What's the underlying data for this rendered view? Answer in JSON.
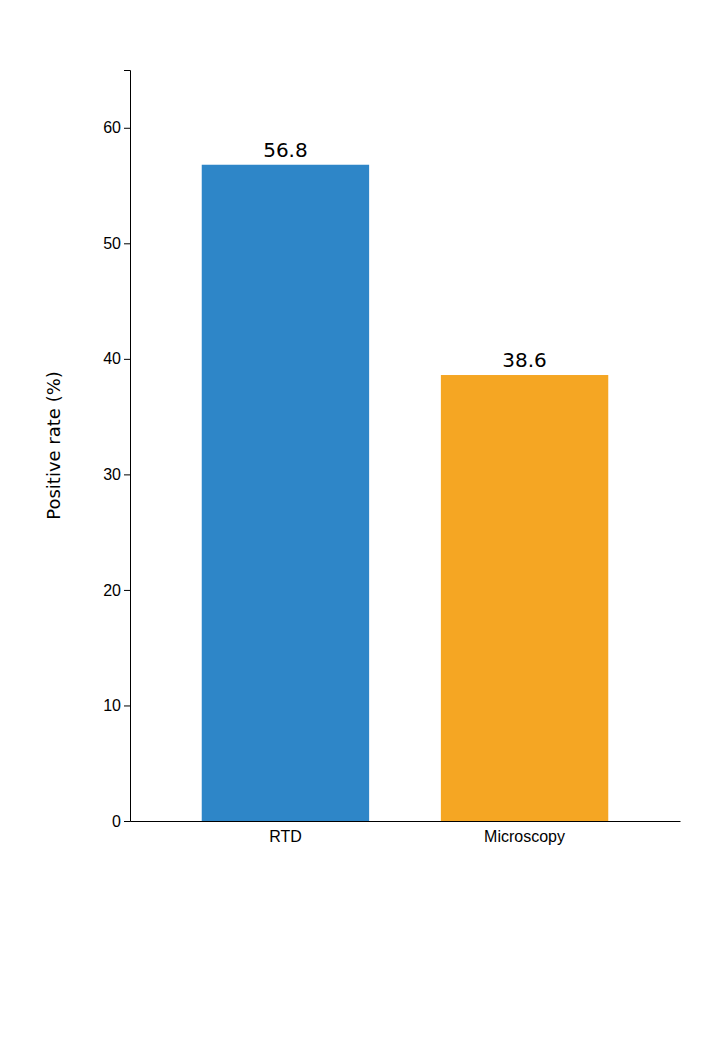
{
  "chart_data": {
    "type": "bar",
    "categories": [
      "RTD",
      "Microscopy"
    ],
    "values": [
      56.8,
      38.6
    ],
    "colors": [
      "#2e86c8",
      "#f5a623"
    ],
    "ylabel": "Positive rate (%)",
    "ylim": [
      0,
      65
    ],
    "yticks": [
      0,
      10,
      20,
      30,
      40,
      50,
      60
    ],
    "data_labels": true
  }
}
